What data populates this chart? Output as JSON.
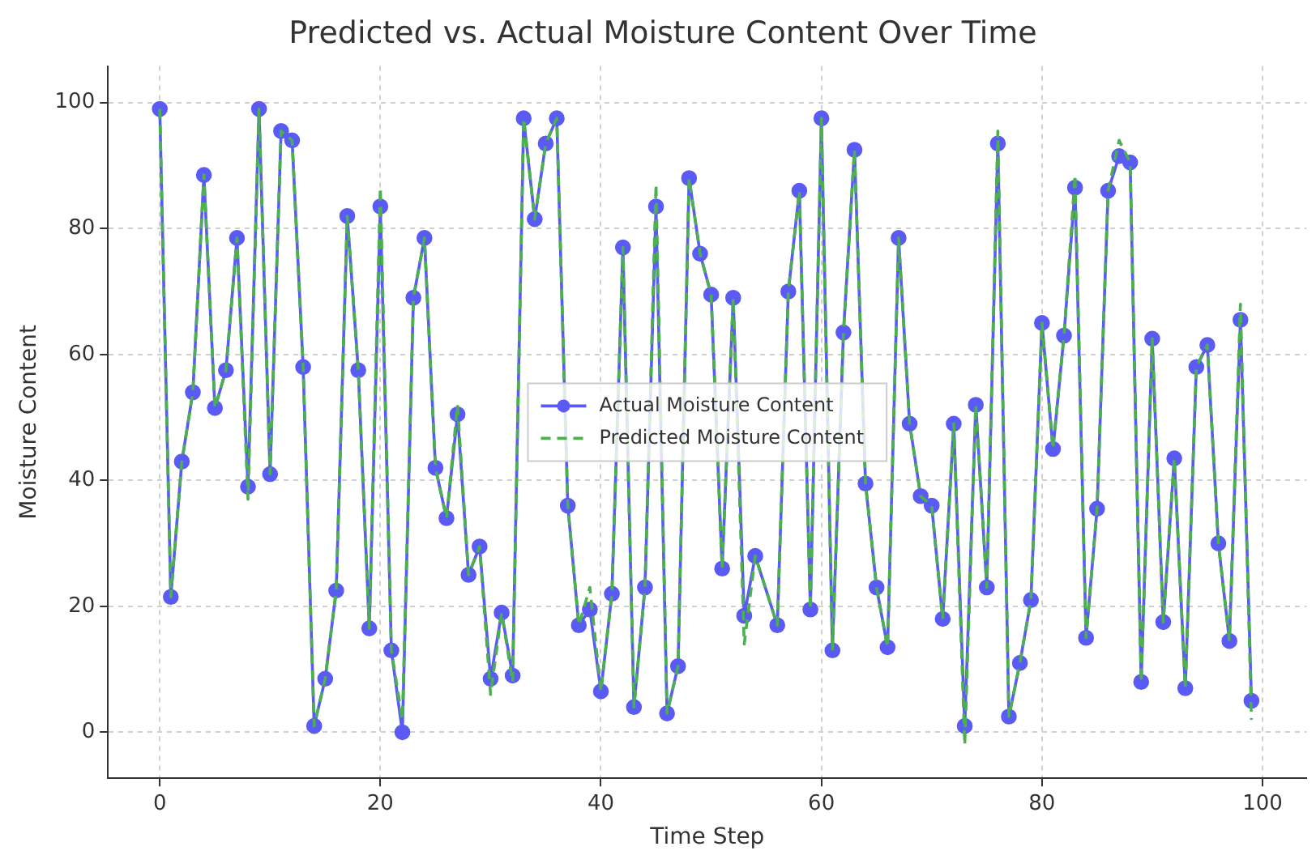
{
  "chart_data": {
    "type": "line",
    "title": "Predicted vs. Actual Moisture Content Over Time",
    "xlabel": "Time Step",
    "ylabel": "Moisture Content",
    "x": [
      0,
      1,
      2,
      3,
      4,
      5,
      6,
      7,
      8,
      9,
      10,
      11,
      12,
      13,
      14,
      15,
      16,
      17,
      18,
      19,
      20,
      21,
      22,
      23,
      24,
      25,
      26,
      27,
      28,
      29,
      30,
      31,
      32,
      33,
      34,
      35,
      36,
      37,
      38,
      39,
      40,
      41,
      42,
      43,
      44,
      45,
      46,
      47,
      48,
      49,
      50,
      51,
      52,
      53,
      54,
      55,
      56,
      57,
      58,
      59,
      60,
      61,
      62,
      63,
      64,
      65,
      66,
      67,
      68,
      69,
      70,
      71,
      72,
      73,
      74,
      75,
      76,
      77,
      78,
      79,
      80,
      81,
      82,
      83,
      84,
      85,
      86,
      87,
      88,
      89,
      90,
      91,
      92,
      93,
      94,
      95,
      96,
      97,
      98,
      99
    ],
    "series": [
      {
        "name": "Actual Moisture Content",
        "color": "#5a5af5",
        "marker": "circle",
        "line_style": "solid",
        "values": [
          99,
          21.5,
          43,
          54,
          88.5,
          51.5,
          57.5,
          78.5,
          39,
          99,
          41,
          95.5,
          94,
          58,
          1,
          8.5,
          22.5,
          82,
          57.5,
          16.5,
          83.5,
          13,
          0,
          69,
          78.5,
          42,
          34,
          50.5,
          25,
          29.5,
          8.5,
          19,
          9,
          97.5,
          81.5,
          93.5,
          97.5,
          36,
          17,
          19.5,
          6.5,
          22,
          77,
          4,
          23,
          83.5,
          3,
          10.5,
          88,
          76,
          69.5,
          26,
          69,
          18.5,
          28,
          null,
          17,
          70,
          86,
          19.5,
          97.5,
          13,
          63.5,
          92.5,
          39.5,
          23,
          13.5,
          78.5,
          49,
          37.5,
          36,
          18,
          49,
          1,
          52,
          23,
          93.5,
          2.5,
          11,
          21,
          65,
          45,
          63,
          86.5,
          15,
          35.5,
          86,
          91.5,
          90.5,
          8,
          62.5,
          17.5,
          43.5,
          7,
          58,
          61.5,
          30,
          14.5,
          65.5,
          5
        ]
      },
      {
        "name": "Predicted Moisture Content",
        "color": "#4caf50",
        "marker": "none",
        "line_style": "dashed",
        "values": [
          99,
          21.5,
          43,
          54,
          88.5,
          51.5,
          57.5,
          78.5,
          37,
          99,
          41,
          95.5,
          94,
          58,
          1,
          8.5,
          22.5,
          82,
          57.5,
          16.5,
          86.5,
          13,
          2,
          69,
          78.5,
          42,
          34,
          52,
          25,
          29.5,
          6,
          19,
          8,
          97.5,
          81.5,
          93.5,
          97.5,
          36,
          17,
          23,
          6.5,
          22,
          77,
          4,
          23,
          87,
          3,
          10.5,
          88,
          76,
          69.5,
          26,
          69,
          14,
          28,
          null,
          17,
          70,
          86,
          19.5,
          97.5,
          13,
          63.5,
          92.5,
          39.5,
          23,
          13.5,
          78.5,
          49,
          37.5,
          36,
          18,
          49,
          -2,
          52,
          23,
          95.5,
          2.5,
          11,
          21,
          65,
          45,
          63,
          88.5,
          15,
          35.5,
          86,
          94,
          90.5,
          8,
          62.5,
          17.5,
          43.5,
          7,
          58,
          61.5,
          30,
          14.5,
          68,
          2
        ]
      }
    ],
    "xlim": [
      -4.7,
      104
    ],
    "ylim": [
      -7.3,
      105.8
    ],
    "xticks": [
      0,
      20,
      40,
      60,
      80,
      100
    ],
    "yticks": [
      0,
      20,
      40,
      60,
      80,
      100
    ],
    "grid": true,
    "legend": "center"
  }
}
